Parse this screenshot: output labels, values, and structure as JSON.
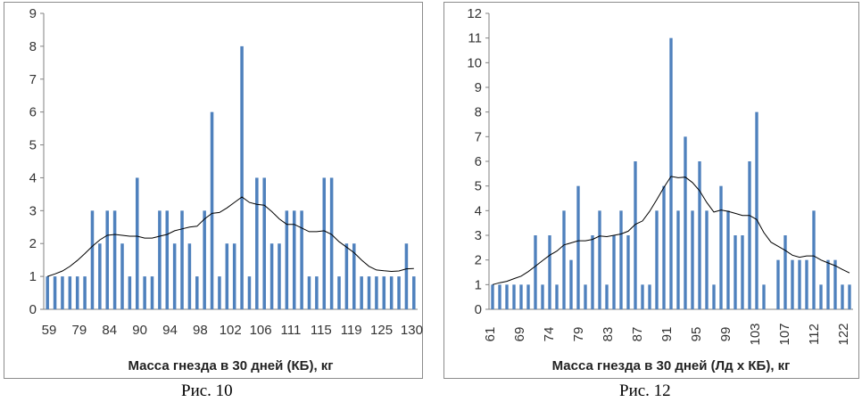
{
  "figures": [
    {
      "caption": "Рис. 10"
    },
    {
      "caption": "Рис. 12"
    }
  ],
  "colors": {
    "bar": "#4f81bd",
    "trend": "#000000",
    "axis": "#808080"
  },
  "chart_data": [
    {
      "type": "bar",
      "xlabel": "Масса гнезда в 30 дней (КБ), кг",
      "ylabel": "",
      "ylim": [
        0,
        9
      ],
      "yticks": [
        0,
        1,
        2,
        3,
        4,
        5,
        6,
        7,
        8,
        9
      ],
      "x_tick_labels": [
        "59",
        "79",
        "84",
        "90",
        "94",
        "98",
        "102",
        "106",
        "111",
        "115",
        "119",
        "125",
        "130"
      ],
      "values": [
        1,
        1,
        1,
        1,
        1,
        1,
        3,
        2,
        3,
        3,
        2,
        1,
        4,
        1,
        1,
        3,
        3,
        2,
        3,
        2,
        1,
        3,
        6,
        1,
        2,
        2,
        8,
        1,
        4,
        4,
        2,
        2,
        3,
        3,
        3,
        1,
        1,
        4,
        4,
        1,
        2,
        2,
        1,
        1,
        1,
        1,
        1,
        1,
        2,
        1
      ],
      "trendline": true
    },
    {
      "type": "bar",
      "xlabel": "Масса гнезда в 30 дней (Лд x КБ), кг",
      "ylabel": "",
      "ylim": [
        0,
        12
      ],
      "yticks": [
        0,
        1,
        2,
        3,
        4,
        5,
        6,
        7,
        8,
        9,
        10,
        11,
        12
      ],
      "x_tick_labels": [
        "61",
        "69",
        "74",
        "79",
        "83",
        "87",
        "91",
        "95",
        "99",
        "103",
        "107",
        "112",
        "122"
      ],
      "values": [
        1,
        1,
        1,
        1,
        1,
        1,
        3,
        1,
        3,
        1,
        4,
        2,
        5,
        1,
        3,
        4,
        1,
        3,
        4,
        3,
        6,
        1,
        1,
        4,
        5,
        11,
        4,
        7,
        4,
        6,
        4,
        1,
        5,
        4,
        3,
        3,
        6,
        8,
        1,
        0,
        2,
        3,
        2,
        2,
        2,
        4,
        1,
        2,
        2,
        1,
        1
      ],
      "trendline": true
    }
  ]
}
